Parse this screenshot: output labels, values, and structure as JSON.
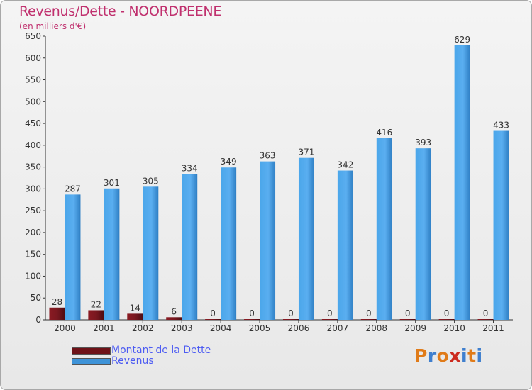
{
  "header": {
    "title": "Revenus/Dette - NOORDPEENE",
    "subtitle": "(en milliers d'€)"
  },
  "chart_data": {
    "type": "bar",
    "title": "Revenus/Dette - NOORDPEENE",
    "ylabel": "(en milliers d'€)",
    "xlabel": "",
    "categories": [
      "2000",
      "2001",
      "2002",
      "2003",
      "2004",
      "2005",
      "2006",
      "2007",
      "2008",
      "2009",
      "2010",
      "2011"
    ],
    "series": [
      {
        "name": "Montant de la Dette",
        "color": "#6e1218",
        "values": [
          28,
          22,
          14,
          6,
          0,
          0,
          0,
          0,
          0,
          0,
          0,
          0
        ]
      },
      {
        "name": "Revenus",
        "color": "#3e93d8",
        "values": [
          287,
          301,
          305,
          334,
          349,
          363,
          371,
          342,
          416,
          393,
          629,
          433
        ]
      }
    ],
    "ylim": [
      0,
      650
    ],
    "yticks": [
      0,
      50,
      100,
      150,
      200,
      250,
      300,
      350,
      400,
      450,
      500,
      550,
      600,
      650
    ],
    "grid": false,
    "data_labels": true,
    "legend": "bottom-left"
  },
  "legend": {
    "items": [
      {
        "label": "Montant de la Dette",
        "color": "#6e1218"
      },
      {
        "label": "Revenus",
        "color": "#3e93d8"
      }
    ]
  },
  "logo": {
    "text": "Proxiti",
    "letters": [
      "P",
      "r",
      "o",
      "x",
      "i",
      "t",
      "i"
    ],
    "colors": [
      "#e07b19",
      "#3f7fce",
      "#e07b19",
      "#cc2a1e",
      "#3f7fce",
      "#e07b19",
      "#3f7fce"
    ]
  }
}
